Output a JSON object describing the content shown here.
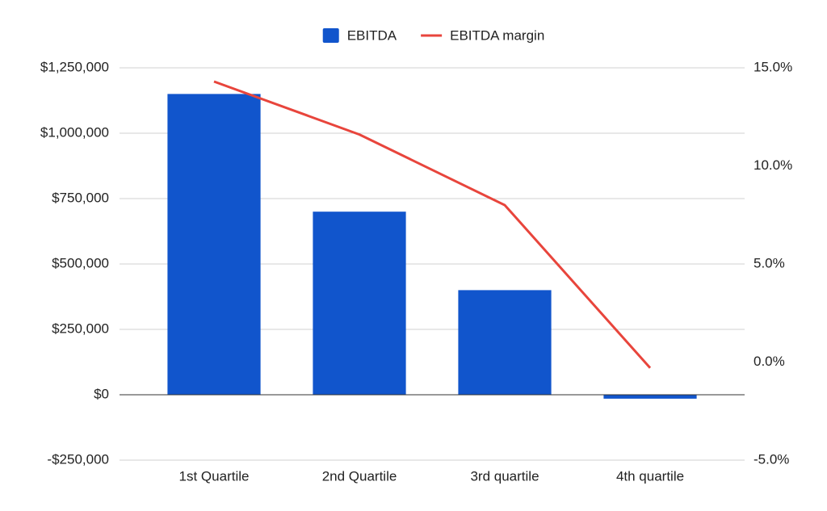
{
  "chart_data": {
    "type": "combo",
    "categories": [
      "1st Quartile",
      "2nd Quartile",
      "3rd quartile",
      "4th quartile"
    ],
    "series": [
      {
        "name": "EBITDA",
        "type": "bar",
        "color": "#1155cc",
        "values": [
          1150000,
          700000,
          400000,
          -15000
        ]
      },
      {
        "name": "EBITDA margin",
        "type": "line",
        "axis": "y2",
        "color": "#e8453c",
        "values": [
          14.3,
          11.6,
          8.0,
          -0.3
        ]
      }
    ],
    "ylim": [
      -250000,
      1250000
    ],
    "yticks": [
      {
        "value": -250000,
        "label": "-$250,000"
      },
      {
        "value": 0,
        "label": "$0"
      },
      {
        "value": 250000,
        "label": "$250,000"
      },
      {
        "value": 500000,
        "label": "$500,000"
      },
      {
        "value": 750000,
        "label": "$750,000"
      },
      {
        "value": 1000000,
        "label": "$1,000,000"
      },
      {
        "value": 1250000,
        "label": "$1,250,000"
      }
    ],
    "y2lim": [
      -5,
      15
    ],
    "y2ticks": [
      {
        "value": -5,
        "label": "-5.0%"
      },
      {
        "value": 0,
        "label": "0.0%"
      },
      {
        "value": 5,
        "label": "5.0%"
      },
      {
        "value": 10,
        "label": "10.0%"
      },
      {
        "value": 15,
        "label": "15.0%"
      }
    ],
    "grid": true,
    "legend": "top"
  }
}
